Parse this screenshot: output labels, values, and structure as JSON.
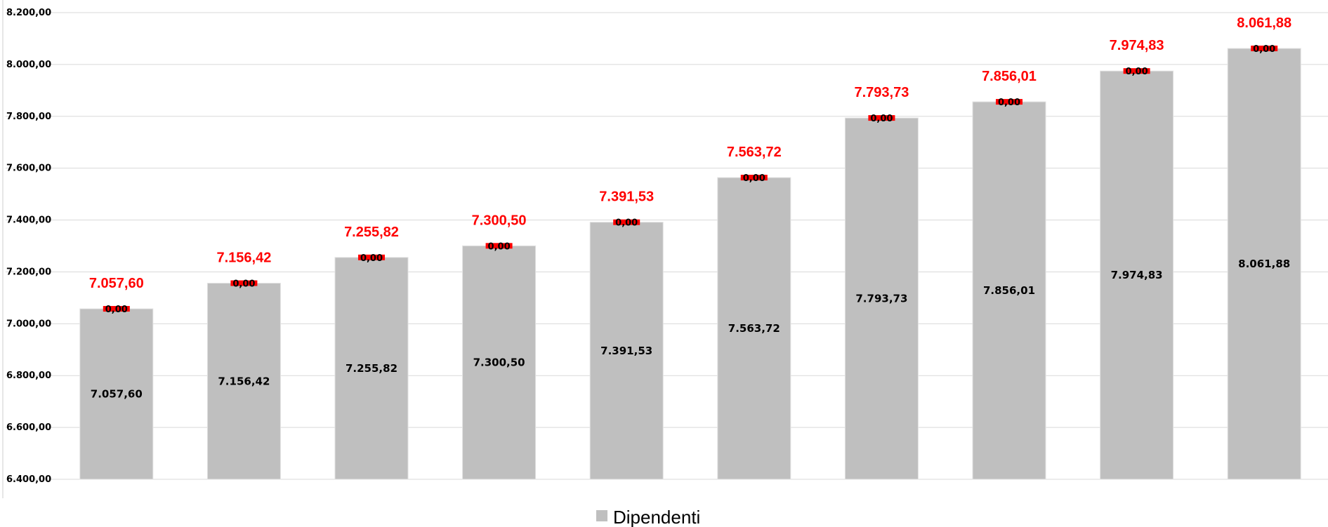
{
  "chart_data": {
    "type": "bar",
    "categories": [
      "",
      "",
      "",
      "",
      "",
      "",
      "",
      "",
      "",
      ""
    ],
    "series": [
      {
        "name": "Dipendenti",
        "values": [
          7057.6,
          7156.42,
          7255.82,
          7300.5,
          7391.53,
          7563.72,
          7793.73,
          7856.01,
          7974.83,
          8061.88
        ],
        "labels": [
          "7.057,60",
          "7.156,42",
          "7.255,82",
          "7.300,50",
          "7.391,53",
          "7.563,72",
          "7.793,73",
          "7.856,01",
          "7.974,83",
          "8.061,88"
        ],
        "color": "#bfbfbf"
      },
      {
        "name": "",
        "values": [
          0,
          0,
          0,
          0,
          0,
          0,
          0,
          0,
          0,
          0
        ],
        "labels": [
          "0,00",
          "0,00",
          "0,00",
          "0,00",
          "0,00",
          "0,00",
          "0,00",
          "0,00",
          "0,00",
          "0,00"
        ],
        "color": "#ff0000"
      }
    ],
    "total_labels": [
      "7.057,60",
      "7.156,42",
      "7.255,82",
      "7.300,50",
      "7.391,53",
      "7.563,72",
      "7.793,73",
      "7.856,01",
      "7.974,83",
      "8.061,88"
    ],
    "total_label_color": "#ff0000",
    "ylim": [
      6400,
      8200
    ],
    "yticks": [
      6400,
      6600,
      6800,
      7000,
      7200,
      7400,
      7600,
      7800,
      8000,
      8200
    ],
    "ytick_labels": [
      "6.400,00",
      "6.600,00",
      "6.800,00",
      "7.000,00",
      "7.200,00",
      "7.400,00",
      "7.600,00",
      "7.800,00",
      "8.000,00",
      "8.200,00"
    ],
    "grid": true,
    "legend": {
      "position": "bottom",
      "entries": [
        "Dipendenti"
      ]
    },
    "title": "",
    "xlabel": "",
    "ylabel": ""
  }
}
